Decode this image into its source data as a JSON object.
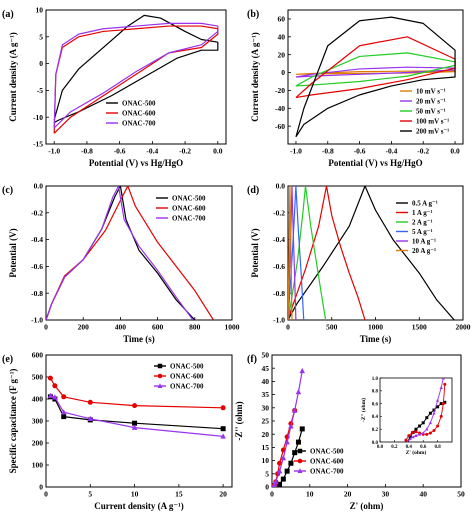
{
  "colors": {
    "black": "#000000",
    "red": "#e60000",
    "green": "#22cc22",
    "purple": "#9933ee",
    "orange": "#e07a00",
    "blue": "#3366ff"
  },
  "chart_data": [
    {
      "panel": "(a)",
      "type": "line",
      "xlabel": "Potential (V) vs Hg/HgO",
      "ylabel": "Current density (A g⁻¹)",
      "xlim": [
        -1.05,
        0.05
      ],
      "ylim": [
        -15,
        10
      ],
      "xticks": [
        -1.0,
        -0.8,
        -0.6,
        -0.4,
        -0.2,
        0.0
      ],
      "xtick_labels": [
        "-1.0",
        "-0.8",
        "-0.6",
        "-0.4",
        "-0.2",
        "0.0"
      ],
      "yticks": [
        -15,
        -10,
        -5,
        0,
        5,
        10
      ],
      "ytick_labels": [
        "-15",
        "-10",
        "-5",
        "0",
        "5",
        "10"
      ],
      "legend": "bottom-right",
      "series": [
        {
          "name": "ONAC-500",
          "color": "black",
          "x": [
            -1.0,
            -0.95,
            -0.85,
            -0.7,
            -0.55,
            -0.45,
            -0.35,
            -0.2,
            -0.1,
            0.0,
            0.0,
            -0.1,
            -0.25,
            -0.45,
            -0.65,
            -0.85,
            -0.97,
            -1.0
          ],
          "y": [
            -10.5,
            -5,
            -1,
            3,
            7,
            9,
            8.5,
            6,
            4.5,
            4,
            2.5,
            2.5,
            1,
            -2.5,
            -6,
            -9,
            -10.5,
            -11
          ]
        },
        {
          "name": "ONAC-600",
          "color": "red",
          "x": [
            -1.0,
            -0.99,
            -0.95,
            -0.85,
            -0.7,
            -0.5,
            -0.3,
            -0.1,
            0.0,
            0.0,
            -0.1,
            -0.3,
            -0.5,
            -0.7,
            -0.9,
            -1.0
          ],
          "y": [
            -13,
            -2,
            3,
            5,
            6,
            6.5,
            7,
            7,
            6.5,
            5.5,
            3,
            2,
            -2,
            -6,
            -10,
            -13
          ]
        },
        {
          "name": "ONAC-700",
          "color": "purple",
          "x": [
            -1.0,
            -0.99,
            -0.95,
            -0.85,
            -0.7,
            -0.5,
            -0.3,
            -0.1,
            0.0,
            0.0,
            -0.1,
            -0.3,
            -0.5,
            -0.7,
            -0.9,
            -1.0
          ],
          "y": [
            -12,
            -2,
            3.5,
            5.5,
            6.5,
            7,
            7.5,
            7.5,
            7,
            6,
            3.5,
            2,
            -1.5,
            -5.5,
            -9,
            -12
          ]
        }
      ]
    },
    {
      "panel": "(b)",
      "type": "line",
      "xlabel": "Potential (V) vs Hg/HgO",
      "ylabel": "Current density (A g⁻¹)",
      "xlim": [
        -1.05,
        0.05
      ],
      "ylim": [
        -80,
        70
      ],
      "xticks": [
        -1.0,
        -0.8,
        -0.6,
        -0.4,
        -0.2,
        0.0
      ],
      "xtick_labels": [
        "-1.0",
        "-0.8",
        "-0.6",
        "-0.4",
        "-0.2",
        "0.0"
      ],
      "yticks": [
        -60,
        -40,
        -20,
        0,
        20,
        40,
        60
      ],
      "ytick_labels": [
        "-60",
        "-40",
        "-20",
        "0",
        "20",
        "40",
        "60"
      ],
      "legend": "bottom-right",
      "series": [
        {
          "name": "10 mV s⁻¹",
          "color": "orange",
          "x": [
            -1.0,
            -0.9,
            -0.6,
            -0.3,
            0.0,
            0.0,
            -0.3,
            -0.6,
            -0.9,
            -1.0
          ],
          "y": [
            -2,
            -1,
            1,
            1.5,
            2,
            1,
            -0.5,
            -1,
            -1.5,
            -2
          ]
        },
        {
          "name": "20 mV s⁻¹",
          "color": "purple",
          "x": [
            -1.0,
            -0.9,
            -0.6,
            -0.3,
            0.0,
            0.0,
            -0.3,
            -0.6,
            -0.9,
            -1.0
          ],
          "y": [
            -5,
            -2,
            4,
            6,
            5,
            3,
            0,
            -2,
            -4,
            -5
          ]
        },
        {
          "name": "50 mV s⁻¹",
          "color": "green",
          "x": [
            -1.0,
            -0.9,
            -0.6,
            -0.3,
            0.0,
            0.0,
            -0.3,
            -0.6,
            -0.9,
            -1.0
          ],
          "y": [
            -15,
            -5,
            18,
            22,
            12,
            8,
            -4,
            -10,
            -14,
            -15
          ]
        },
        {
          "name": "100 mV s⁻¹",
          "color": "red",
          "x": [
            -1.0,
            -0.9,
            -0.6,
            -0.3,
            0.0,
            0.0,
            -0.3,
            -0.6,
            -0.9,
            -1.0
          ],
          "y": [
            -28,
            -12,
            30,
            40,
            15,
            5,
            -8,
            -18,
            -25,
            -28
          ]
        },
        {
          "name": "200 mV s⁻¹",
          "color": "black",
          "x": [
            -1.0,
            -0.95,
            -0.8,
            -0.6,
            -0.4,
            -0.2,
            0.0,
            0.0,
            -0.2,
            -0.4,
            -0.6,
            -0.8,
            -0.95,
            -1.0
          ],
          "y": [
            -72,
            -40,
            30,
            58,
            62,
            55,
            25,
            -5,
            -8,
            -15,
            -25,
            -40,
            -58,
            -72
          ]
        }
      ]
    },
    {
      "panel": "(c)",
      "type": "line",
      "xlabel": "Time (s)",
      "ylabel": "Potential (V)",
      "xlim": [
        0,
        1000
      ],
      "ylim": [
        -1.0,
        0.0
      ],
      "xticks": [
        0,
        200,
        400,
        600,
        800,
        1000
      ],
      "xtick_labels": [
        "0",
        "200",
        "400",
        "600",
        "800",
        "1000"
      ],
      "yticks": [
        -1.0,
        -0.8,
        -0.6,
        -0.4,
        -0.2,
        0.0
      ],
      "ytick_labels": [
        "-1.0",
        "-0.8",
        "-0.6",
        "-0.4",
        "-0.2",
        "0.0"
      ],
      "legend": "top-right",
      "series": [
        {
          "name": "ONAC-500",
          "color": "black",
          "x": [
            0,
            30,
            100,
            200,
            300,
            370,
            400,
            430,
            500,
            600,
            700,
            800
          ],
          "y": [
            -1.0,
            -0.88,
            -0.68,
            -0.55,
            -0.32,
            -0.08,
            0.0,
            -0.25,
            -0.48,
            -0.65,
            -0.85,
            -1.0
          ]
        },
        {
          "name": "ONAC-600",
          "color": "red",
          "x": [
            0,
            30,
            100,
            200,
            320,
            410,
            440,
            480,
            600,
            700,
            800,
            900
          ],
          "y": [
            -1.0,
            -0.88,
            -0.67,
            -0.55,
            -0.33,
            -0.08,
            0.0,
            -0.15,
            -0.42,
            -0.6,
            -0.78,
            -1.0
          ]
        },
        {
          "name": "ONAC-700",
          "color": "purple",
          "x": [
            0,
            30,
            100,
            200,
            300,
            360,
            390,
            420,
            500,
            600,
            700,
            790
          ],
          "y": [
            -1.0,
            -0.88,
            -0.68,
            -0.55,
            -0.32,
            -0.08,
            0.0,
            -0.25,
            -0.45,
            -0.63,
            -0.83,
            -1.0
          ]
        }
      ]
    },
    {
      "panel": "(d)",
      "type": "line",
      "xlabel": "Time (s)",
      "ylabel": "Potential (V)",
      "xlim": [
        0,
        2000
      ],
      "ylim": [
        -1.0,
        0.0
      ],
      "xticks": [
        0,
        500,
        1000,
        1500,
        2000
      ],
      "xtick_labels": [
        "0",
        "500",
        "1000",
        "1500",
        "2000"
      ],
      "yticks": [
        -1.0,
        -0.8,
        -0.6,
        -0.4,
        -0.2,
        0.0
      ],
      "ytick_labels": [
        "-1.0",
        "-0.8",
        "-0.6",
        "-0.4",
        "-0.2",
        "0.0"
      ],
      "legend": "top-right",
      "series": [
        {
          "name": "0.5 A g⁻¹",
          "color": "black",
          "x": [
            0,
            100,
            400,
            700,
            880,
            1000,
            1200,
            1500,
            1700,
            1900
          ],
          "y": [
            -1.0,
            -0.88,
            -0.6,
            -0.3,
            0.0,
            -0.18,
            -0.4,
            -0.65,
            -0.85,
            -1.0
          ]
        },
        {
          "name": "1 A g⁻¹",
          "color": "red",
          "x": [
            0,
            50,
            200,
            350,
            440,
            500,
            600,
            700,
            800,
            880
          ],
          "y": [
            -1.0,
            -0.9,
            -0.62,
            -0.3,
            0.0,
            -0.22,
            -0.45,
            -0.65,
            -0.83,
            -1.0
          ]
        },
        {
          "name": "2 A g⁻¹",
          "color": "green",
          "x": [
            0,
            40,
            110,
            170,
            200,
            260,
            320,
            380,
            430
          ],
          "y": [
            -1.0,
            -0.85,
            -0.55,
            -0.2,
            0.0,
            -0.3,
            -0.55,
            -0.8,
            -1.0
          ]
        },
        {
          "name": "5 A g⁻¹",
          "color": "blue",
          "x": [
            0,
            20,
            50,
            75,
            90,
            120,
            150,
            180
          ],
          "y": [
            -1.0,
            -0.8,
            -0.5,
            -0.2,
            0.0,
            -0.35,
            -0.65,
            -1.0
          ]
        },
        {
          "name": "10 A g⁻¹",
          "color": "purple",
          "x": [
            0,
            10,
            25,
            38,
            45,
            60,
            75,
            90
          ],
          "y": [
            -1.0,
            -0.8,
            -0.5,
            -0.2,
            0.0,
            -0.35,
            -0.65,
            -1.0
          ]
        },
        {
          "name": "20 A g⁻¹",
          "color": "orange",
          "x": [
            0,
            5,
            12,
            18,
            22,
            30,
            38,
            45
          ],
          "y": [
            -1.0,
            -0.8,
            -0.5,
            -0.2,
            0.0,
            -0.35,
            -0.65,
            -1.0
          ]
        }
      ]
    },
    {
      "panel": "(e)",
      "type": "line",
      "xlabel": "Current density (A g⁻¹)",
      "ylabel": "Specific capacitance (F g⁻¹)",
      "xlim": [
        0,
        21
      ],
      "ylim": [
        0,
        600
      ],
      "xticks": [
        0,
        5,
        10,
        15,
        20
      ],
      "xtick_labels": [
        "0",
        "5",
        "10",
        "15",
        "20"
      ],
      "yticks": [
        0,
        100,
        200,
        300,
        400,
        500,
        600
      ],
      "ytick_labels": [
        "0",
        "100",
        "200",
        "300",
        "400",
        "500",
        "600"
      ],
      "legend": "top-right",
      "series": [
        {
          "name": "ONAC-500",
          "color": "black",
          "marker": "square",
          "x": [
            0.5,
            1,
            2,
            5,
            10,
            20
          ],
          "y": [
            410,
            400,
            320,
            305,
            290,
            265
          ]
        },
        {
          "name": "ONAC-600",
          "color": "red",
          "marker": "circle",
          "x": [
            0.5,
            1,
            2,
            5,
            10,
            20
          ],
          "y": [
            495,
            460,
            410,
            385,
            370,
            360
          ]
        },
        {
          "name": "ONAC-700",
          "color": "purple",
          "marker": "triangle",
          "x": [
            0.5,
            1,
            2,
            5,
            10,
            20
          ],
          "y": [
            415,
            408,
            340,
            310,
            270,
            230
          ]
        }
      ]
    },
    {
      "panel": "(f)",
      "type": "scatter",
      "xlabel": "Z' (ohm)",
      "ylabel": "-Z'' (ohm)",
      "xlim": [
        0,
        50
      ],
      "ylim": [
        0,
        50
      ],
      "xticks": [
        0,
        10,
        20,
        30,
        40,
        50
      ],
      "xtick_labels": [
        "0",
        "10",
        "20",
        "30",
        "40",
        "50"
      ],
      "yticks": [
        0,
        5,
        10,
        15,
        20,
        25,
        30,
        35,
        40,
        45,
        50
      ],
      "ytick_labels": [
        "0",
        "5",
        "10",
        "15",
        "20",
        "25",
        "30",
        "35",
        "40",
        "45",
        "50"
      ],
      "legend": "right",
      "series": [
        {
          "name": "ONAC-500",
          "color": "black",
          "marker": "square",
          "x": [
            0.4,
            0.6,
            1,
            2,
            3,
            4,
            5,
            6,
            7,
            8
          ],
          "y": [
            0.2,
            0.5,
            0.5,
            1,
            3,
            6,
            9,
            13,
            17,
            22
          ]
        },
        {
          "name": "ONAC-600",
          "color": "red",
          "marker": "circle",
          "x": [
            0.4,
            0.5,
            0.8,
            1,
            1.5,
            2,
            3,
            4,
            5,
            6
          ],
          "y": [
            0.2,
            0.5,
            0.8,
            2,
            5,
            9,
            14,
            19,
            24,
            29
          ]
        },
        {
          "name": "ONAC-700",
          "color": "purple",
          "marker": "triangle",
          "x": [
            0.4,
            0.5,
            0.7,
            1,
            2,
            3,
            4,
            5,
            6,
            7,
            8
          ],
          "y": [
            0.2,
            0.5,
            1,
            2,
            6,
            11,
            17,
            23,
            29,
            36,
            44
          ]
        }
      ],
      "inset": {
        "xlabel": "Z' (ohm)",
        "ylabel": "-Z'' (ohm)",
        "xlim": [
          0,
          1.0
        ],
        "ylim": [
          0,
          1.0
        ],
        "xticks": [
          0.0,
          0.2,
          0.4,
          0.6,
          0.8
        ],
        "xtick_labels": [
          "0.0",
          "0.2",
          "0.4",
          "0.6",
          "0.8"
        ],
        "yticks": [
          0.0,
          0.2,
          0.4,
          0.6,
          0.8,
          1.0
        ],
        "ytick_labels": [
          "0.0",
          "0.2",
          "0.4",
          "0.6",
          "0.8",
          "1.0"
        ],
        "series": [
          {
            "name": "ONAC-500",
            "color": "black",
            "marker": "square",
            "x": [
              0.38,
              0.42,
              0.46,
              0.5,
              0.55,
              0.6,
              0.65,
              0.7,
              0.75,
              0.8,
              0.85,
              0.9
            ],
            "y": [
              0.0,
              0.08,
              0.15,
              0.2,
              0.25,
              0.3,
              0.38,
              0.45,
              0.5,
              0.55,
              0.6,
              0.62
            ]
          },
          {
            "name": "ONAC-600",
            "color": "red",
            "marker": "circle",
            "x": [
              0.36,
              0.4,
              0.45,
              0.5,
              0.55,
              0.6,
              0.65,
              0.7,
              0.75,
              0.8,
              0.85,
              0.88,
              0.9
            ],
            "y": [
              0.03,
              0.1,
              0.15,
              0.16,
              0.14,
              0.12,
              0.12,
              0.14,
              0.18,
              0.25,
              0.4,
              0.6,
              0.9
            ]
          },
          {
            "name": "ONAC-700",
            "color": "purple",
            "marker": "triangle",
            "x": [
              0.38,
              0.42,
              0.46,
              0.5,
              0.55,
              0.6,
              0.65,
              0.7,
              0.75,
              0.8,
              0.85,
              0.88
            ],
            "y": [
              0.0,
              0.05,
              0.08,
              0.1,
              0.12,
              0.14,
              0.2,
              0.3,
              0.45,
              0.65,
              0.85,
              1.0
            ]
          }
        ]
      }
    }
  ]
}
